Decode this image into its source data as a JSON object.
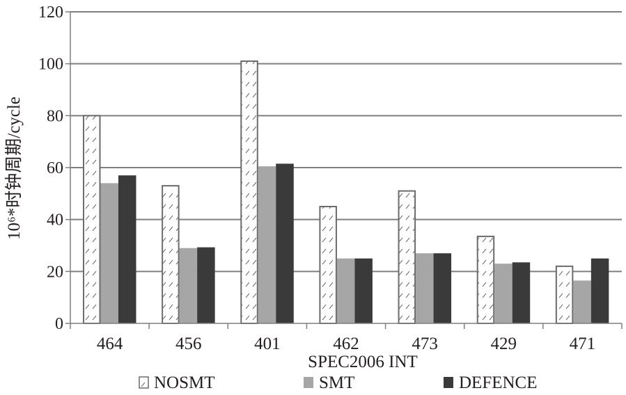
{
  "chart_data": {
    "type": "bar",
    "xlabel": "SPEC2006 INT",
    "ylabel": "10⁶*时钟周期/cycle",
    "ylim": [
      0,
      120
    ],
    "yticks": [
      0,
      20,
      40,
      60,
      80,
      100,
      120
    ],
    "grid": true,
    "legend_position": "bottom",
    "categories": [
      "464",
      "456",
      "401",
      "462",
      "473",
      "429",
      "471"
    ],
    "series": [
      {
        "name": "NOSMT",
        "values": [
          80,
          53,
          101,
          45,
          51,
          33.5,
          22
        ],
        "style": "hatched",
        "color": "#ffffff"
      },
      {
        "name": "SMT",
        "values": [
          54,
          29,
          60.5,
          25,
          27,
          23,
          16.5
        ],
        "style": "solid",
        "color": "#a6a6a6"
      },
      {
        "name": "DEFENCE",
        "values": [
          57,
          29.3,
          61.5,
          25,
          27,
          23.5,
          25
        ],
        "style": "solid",
        "color": "#3a3a3b"
      }
    ]
  }
}
